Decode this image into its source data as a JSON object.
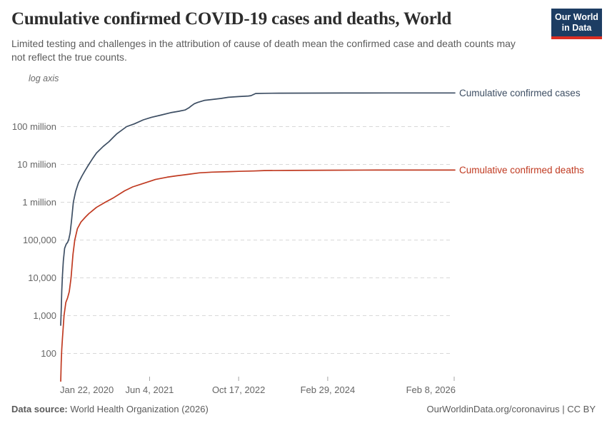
{
  "header": {
    "title": "Cumulative confirmed COVID-19 cases and deaths, World",
    "subtitle": "Limited testing and challenges in the attribution of cause of death mean the confirmed case and death counts may not reflect the true counts.",
    "logo_line1": "Our World",
    "logo_line2": "in Data",
    "logo_bg": "#1d3d63",
    "logo_stripe": "#dc2e22"
  },
  "chart_data": {
    "type": "line",
    "title": "Cumulative confirmed COVID-19 cases and deaths, World",
    "axis_note": "log axis",
    "yscale": "log",
    "grid": true,
    "legend_position": "right-of-line-end",
    "ylim": [
      100,
      1000000000
    ],
    "y_ticks": [
      {
        "label": "100 million",
        "value": 100000000
      },
      {
        "label": "10 million",
        "value": 10000000
      },
      {
        "label": "1 million",
        "value": 1000000
      },
      {
        "label": "100,000",
        "value": 100000
      },
      {
        "label": "10,000",
        "value": 10000
      },
      {
        "label": "1,000",
        "value": 1000
      },
      {
        "label": "100",
        "value": 100
      }
    ],
    "x_ticks": [
      {
        "label": "Jan 22, 2020",
        "date": "2020-01-22"
      },
      {
        "label": "Jun 4, 2021",
        "date": "2021-06-04"
      },
      {
        "label": "Oct 17, 2022",
        "date": "2022-10-17"
      },
      {
        "label": "Feb 29, 2024",
        "date": "2024-02-29"
      },
      {
        "label": "Feb 8, 2026",
        "date": "2026-02-08"
      }
    ],
    "series": [
      {
        "name": "Cumulative confirmed cases",
        "color": "#3d4e63",
        "points": [
          [
            "2020-01-22",
            557
          ],
          [
            "2020-01-25",
            1320
          ],
          [
            "2020-01-28",
            4580
          ],
          [
            "2020-02-01",
            12000
          ],
          [
            "2020-02-06",
            28300
          ],
          [
            "2020-02-13",
            60400
          ],
          [
            "2020-02-22",
            77800
          ],
          [
            "2020-03-01",
            87100
          ],
          [
            "2020-03-07",
            102000
          ],
          [
            "2020-03-15",
            153000
          ],
          [
            "2020-03-23",
            333000
          ],
          [
            "2020-04-02",
            1000000
          ],
          [
            "2020-04-15",
            1950000
          ],
          [
            "2020-05-01",
            3270000
          ],
          [
            "2020-05-21",
            5000000
          ],
          [
            "2020-06-08",
            7000000
          ],
          [
            "2020-06-28",
            10000000
          ],
          [
            "2020-07-22",
            15000000
          ],
          [
            "2020-08-10",
            20000000
          ],
          [
            "2020-09-17",
            30000000
          ],
          [
            "2020-10-19",
            40000000
          ],
          [
            "2020-11-08",
            50000000
          ],
          [
            "2020-12-03",
            65000000
          ],
          [
            "2021-01-26",
            100000000
          ],
          [
            "2021-03-10",
            118000000
          ],
          [
            "2021-04-30",
            151000000
          ],
          [
            "2021-06-15",
            177000000
          ],
          [
            "2021-08-04",
            200000000
          ],
          [
            "2021-10-01",
            234000000
          ],
          [
            "2021-11-15",
            254000000
          ],
          [
            "2021-12-20",
            275000000
          ],
          [
            "2022-01-10",
            312000000
          ],
          [
            "2022-01-25",
            356000000
          ],
          [
            "2022-02-10",
            404000000
          ],
          [
            "2022-03-01",
            437000000
          ],
          [
            "2022-04-10",
            497000000
          ],
          [
            "2022-05-20",
            522000000
          ],
          [
            "2022-07-10",
            557000000
          ],
          [
            "2022-08-20",
            596000000
          ],
          [
            "2022-10-17",
            624000000
          ],
          [
            "2022-12-10",
            645000000
          ],
          [
            "2022-12-25",
            660000000
          ],
          [
            "2023-01-20",
            752000000
          ],
          [
            "2023-03-10",
            760000000
          ],
          [
            "2023-06-01",
            767000000
          ],
          [
            "2023-12-01",
            772000000
          ],
          [
            "2024-06-01",
            775000000
          ],
          [
            "2025-02-01",
            777000000
          ],
          [
            "2026-02-12",
            778000000
          ]
        ]
      },
      {
        "name": "Cumulative confirmed deaths",
        "color": "#c03a21",
        "points": [
          [
            "2020-01-22",
            17
          ],
          [
            "2020-01-25",
            56
          ],
          [
            "2020-01-28",
            131
          ],
          [
            "2020-02-01",
            259
          ],
          [
            "2020-02-10",
            1016
          ],
          [
            "2020-02-20",
            2247
          ],
          [
            "2020-03-01",
            2977
          ],
          [
            "2020-03-10",
            4300
          ],
          [
            "2020-03-20",
            10000
          ],
          [
            "2020-03-31",
            42000
          ],
          [
            "2020-04-10",
            100000
          ],
          [
            "2020-04-25",
            200000
          ],
          [
            "2020-05-15",
            300000
          ],
          [
            "2020-06-10",
            410000
          ],
          [
            "2020-06-28",
            500000
          ],
          [
            "2020-08-10",
            730000
          ],
          [
            "2020-09-28",
            1000000
          ],
          [
            "2020-11-10",
            1280000
          ],
          [
            "2021-01-15",
            2000000
          ],
          [
            "2021-03-01",
            2550000
          ],
          [
            "2021-04-17",
            3000000
          ],
          [
            "2021-07-07",
            4000000
          ],
          [
            "2021-09-10",
            4600000
          ],
          [
            "2021-11-01",
            5000000
          ],
          [
            "2022-01-07",
            5470000
          ],
          [
            "2022-03-10",
            6000000
          ],
          [
            "2022-05-20",
            6250000
          ],
          [
            "2022-08-25",
            6450000
          ],
          [
            "2022-10-17",
            6560000
          ],
          [
            "2023-01-10",
            6700000
          ],
          [
            "2023-03-10",
            6870000
          ],
          [
            "2023-08-01",
            6950000
          ],
          [
            "2024-03-01",
            7030000
          ],
          [
            "2024-12-01",
            7080000
          ],
          [
            "2026-02-12",
            7100000
          ]
        ]
      }
    ]
  },
  "footer": {
    "source_label": "Data source:",
    "source_text": " World Health Organization (2026)",
    "right_text": "OurWorldinData.org/coronavirus | CC BY"
  }
}
